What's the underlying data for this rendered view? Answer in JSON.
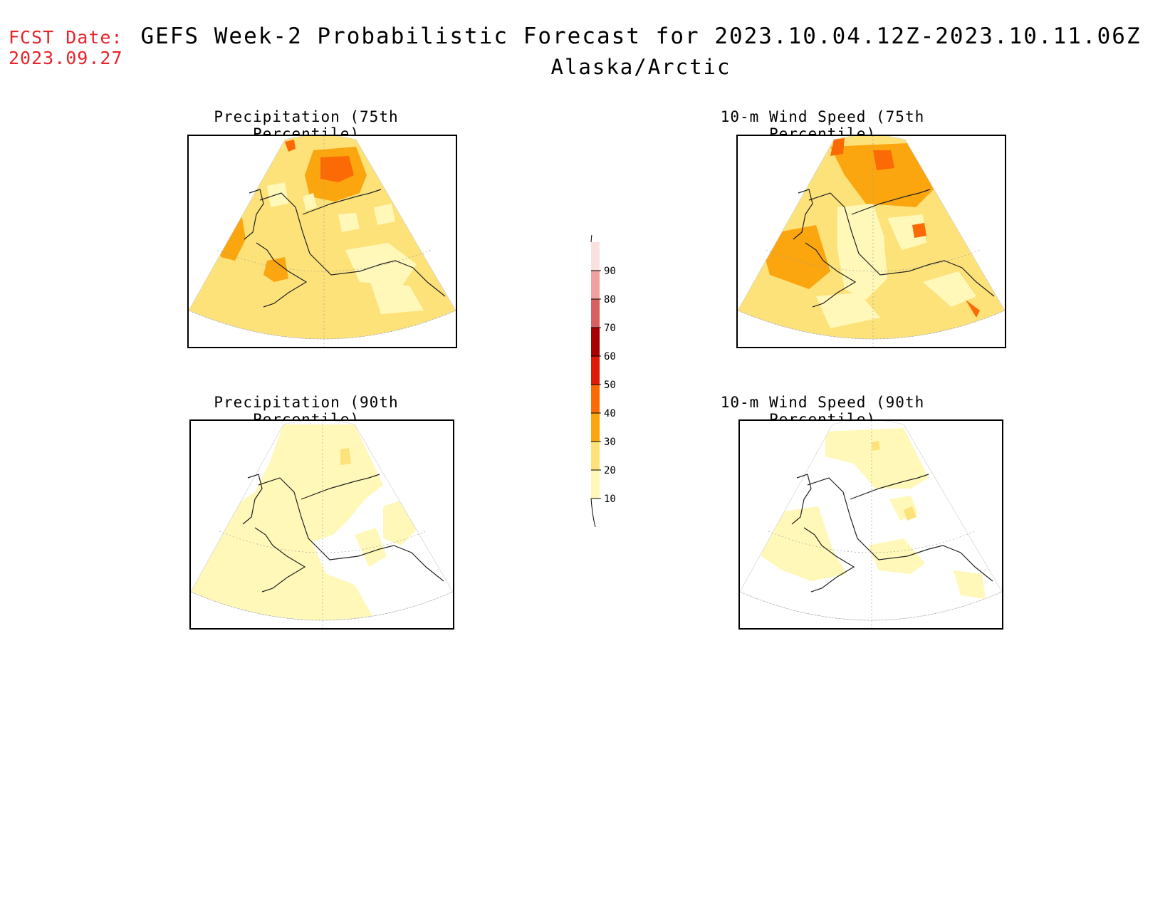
{
  "header": {
    "fcst_label": "FCST Date:",
    "fcst_date": "2023.09.27",
    "title": "GEFS Week-2 Probabilistic Forecast for 2023.10.04.12Z-2023.10.11.06Z",
    "region": "Alaska/Arctic"
  },
  "panels": [
    {
      "id": "precip-75",
      "title": "Precipitation (75th Percentile)"
    },
    {
      "id": "wind-75",
      "title": "10-m Wind Speed (75th Percentile)"
    },
    {
      "id": "precip-90",
      "title": "Precipitation (90th Percentile)"
    },
    {
      "id": "wind-90",
      "title": "10-m Wind Speed (90th Percentile)"
    }
  ],
  "colorbar": {
    "levels": [
      "10",
      "20",
      "30",
      "40",
      "50",
      "60",
      "70",
      "80",
      "90"
    ],
    "colors": [
      "#fff8b8",
      "#fde27a",
      "#fba50f",
      "#fb6a05",
      "#e01a05",
      "#a80000",
      "#d86060",
      "#f0a0a0",
      "#fbe0e0"
    ]
  }
}
